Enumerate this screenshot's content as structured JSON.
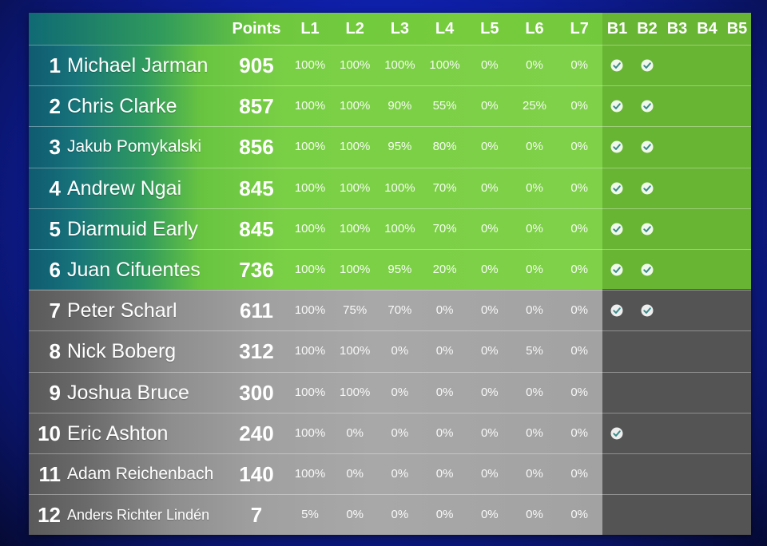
{
  "header": {
    "points": "Points",
    "levels": [
      "L1",
      "L2",
      "L3",
      "L4",
      "L5",
      "L6",
      "L7"
    ],
    "badges": [
      "B1",
      "B2",
      "B3",
      "B4",
      "B5"
    ]
  },
  "colors": {
    "badge_fill": "#ffffff",
    "badge_check": "#3a8a8a"
  },
  "rows": [
    {
      "rank": "1",
      "name": "Michael Jarman",
      "points": "905",
      "levels": [
        "100%",
        "100%",
        "100%",
        "100%",
        "0%",
        "0%",
        "0%"
      ],
      "badges": [
        true,
        true,
        false,
        false,
        false
      ]
    },
    {
      "rank": "2",
      "name": "Chris Clarke",
      "points": "857",
      "levels": [
        "100%",
        "100%",
        "90%",
        "55%",
        "0%",
        "25%",
        "0%"
      ],
      "badges": [
        true,
        true,
        false,
        false,
        false
      ]
    },
    {
      "rank": "3",
      "name": "Jakub Pomykalski",
      "points": "856",
      "levels": [
        "100%",
        "100%",
        "95%",
        "80%",
        "0%",
        "0%",
        "0%"
      ],
      "badges": [
        true,
        true,
        false,
        false,
        false
      ]
    },
    {
      "rank": "4",
      "name": "Andrew Ngai",
      "points": "845",
      "levels": [
        "100%",
        "100%",
        "100%",
        "70%",
        "0%",
        "0%",
        "0%"
      ],
      "badges": [
        true,
        true,
        false,
        false,
        false
      ]
    },
    {
      "rank": "5",
      "name": "Diarmuid Early",
      "points": "845",
      "levels": [
        "100%",
        "100%",
        "100%",
        "70%",
        "0%",
        "0%",
        "0%"
      ],
      "badges": [
        true,
        true,
        false,
        false,
        false
      ]
    },
    {
      "rank": "6",
      "name": "Juan Cifuentes",
      "points": "736",
      "levels": [
        "100%",
        "100%",
        "95%",
        "20%",
        "0%",
        "0%",
        "0%"
      ],
      "badges": [
        true,
        true,
        false,
        false,
        false
      ]
    },
    {
      "rank": "7",
      "name": "Peter Scharl",
      "points": "611",
      "levels": [
        "100%",
        "75%",
        "70%",
        "0%",
        "0%",
        "0%",
        "0%"
      ],
      "badges": [
        true,
        true,
        false,
        false,
        false
      ]
    },
    {
      "rank": "8",
      "name": "Nick Boberg",
      "points": "312",
      "levels": [
        "100%",
        "100%",
        "0%",
        "0%",
        "0%",
        "5%",
        "0%"
      ],
      "badges": [
        false,
        false,
        false,
        false,
        false
      ]
    },
    {
      "rank": "9",
      "name": "Joshua Bruce",
      "points": "300",
      "levels": [
        "100%",
        "100%",
        "0%",
        "0%",
        "0%",
        "0%",
        "0%"
      ],
      "badges": [
        false,
        false,
        false,
        false,
        false
      ]
    },
    {
      "rank": "10",
      "name": "Eric Ashton",
      "points": "240",
      "levels": [
        "100%",
        "0%",
        "0%",
        "0%",
        "0%",
        "0%",
        "0%"
      ],
      "badges": [
        true,
        false,
        false,
        false,
        false
      ]
    },
    {
      "rank": "11",
      "name": "Adam Reichenbach",
      "points": "140",
      "levels": [
        "100%",
        "0%",
        "0%",
        "0%",
        "0%",
        "0%",
        "0%"
      ],
      "badges": [
        false,
        false,
        false,
        false,
        false
      ]
    },
    {
      "rank": "12",
      "name": "Anders Richter Lindén",
      "points": "7",
      "levels": [
        "5%",
        "0%",
        "0%",
        "0%",
        "0%",
        "0%",
        "0%"
      ],
      "badges": [
        false,
        false,
        false,
        false,
        false
      ]
    }
  ]
}
